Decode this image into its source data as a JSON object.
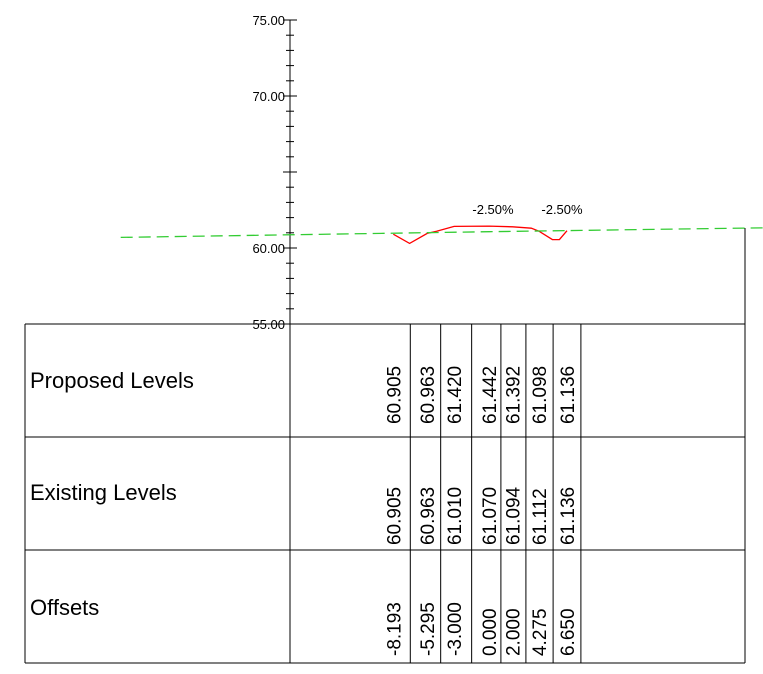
{
  "chart_data": {
    "type": "line",
    "title": "",
    "xlabel": "",
    "ylabel": "",
    "y_ticks": [
      "55.00",
      "60.00",
      "70.00",
      "75.00"
    ],
    "ylim": [
      55,
      75
    ],
    "grade_labels": [
      "-2.50%",
      "-2.50%"
    ],
    "series": [
      {
        "x": [
          -8.193,
          -6.8,
          -5.295,
          -4.5,
          -3.0,
          0.0,
          2.0,
          3.6,
          4.275,
          5.4,
          6.0,
          6.65
        ],
        "y": [
          60.905,
          60.3,
          60.963,
          61.1,
          61.42,
          61.442,
          61.392,
          61.3,
          61.098,
          60.55,
          60.55,
          61.136
        ],
        "color": "#ff0000",
        "style": "solid"
      },
      {
        "x": [
          -31.5,
          0.0,
          34.5
        ],
        "y": [
          60.7,
          61.07,
          61.45
        ],
        "color": "#33cc33",
        "style": "dashed"
      }
    ]
  },
  "table": {
    "rows": [
      {
        "label": "Proposed Levels",
        "values": [
          "60.905",
          "60.963",
          "61.420",
          "61.442",
          "61.392",
          "61.098",
          "61.136"
        ]
      },
      {
        "label": "Existing Levels",
        "values": [
          "60.905",
          "60.963",
          "61.010",
          "61.070",
          "61.094",
          "61.112",
          "61.136"
        ]
      },
      {
        "label": "Offsets",
        "values": [
          "-8.193",
          "-5.295",
          "-3.000",
          "0.000",
          "2.000",
          "4.275",
          "6.650"
        ]
      }
    ]
  }
}
